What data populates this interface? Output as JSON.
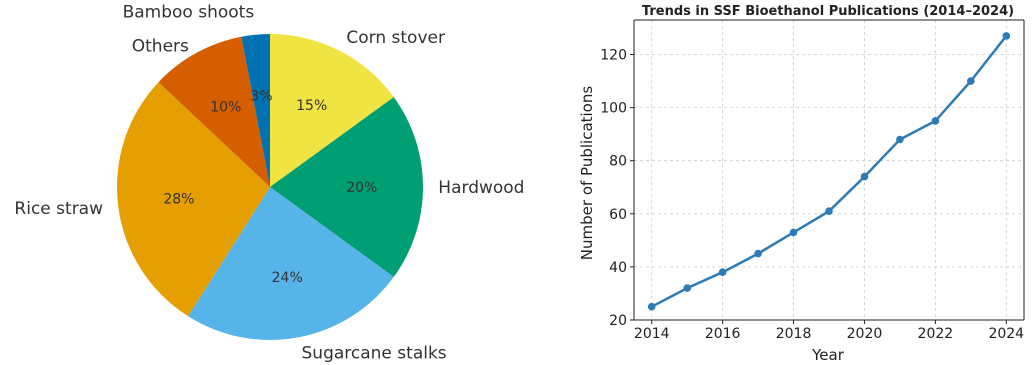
{
  "chart_data": [
    {
      "type": "pie",
      "categories": [
        "Corn stover",
        "Hardwood",
        "Sugarcane stalks",
        "Rice straw",
        "Others",
        "Bamboo shoots"
      ],
      "values": [
        15,
        20,
        24,
        28,
        10,
        3
      ],
      "value_labels": [
        "15%",
        "20%",
        "24%",
        "28%",
        "10%",
        "3%"
      ],
      "colors": [
        "#f0e442",
        "#009e73",
        "#56b4e9",
        "#e69f00",
        "#d55e00",
        "#0072b2"
      ],
      "start_angle": 90,
      "direction": "clockwise"
    },
    {
      "type": "line",
      "title": "Trends in SSF Bioethanol Publications (2014–2024)",
      "xlabel": "Year",
      "ylabel": "Number of Publications",
      "x": [
        2014,
        2015,
        2016,
        2017,
        2018,
        2019,
        2020,
        2021,
        2022,
        2023,
        2024
      ],
      "series": [
        {
          "values": [
            25,
            32,
            38,
            45,
            53,
            61,
            74,
            88,
            95,
            110,
            127
          ]
        }
      ],
      "xticks": [
        "2014",
        "2016",
        "2018",
        "2020",
        "2022",
        "2024"
      ],
      "yticks": [
        "20",
        "40",
        "60",
        "80",
        "100",
        "120"
      ],
      "xlim": [
        2013.5,
        2024.5
      ],
      "ylim": [
        20,
        133
      ],
      "grid": true,
      "color": "#2c7bb6"
    }
  ]
}
